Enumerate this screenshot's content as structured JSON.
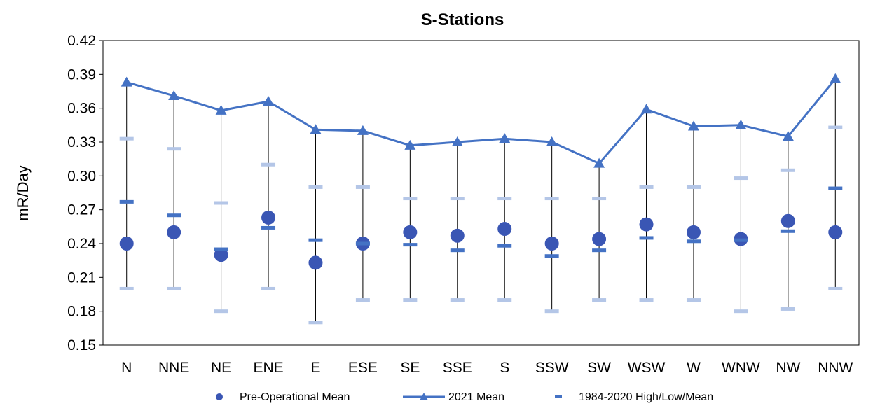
{
  "chart_data": {
    "type": "line",
    "title": "S-Stations",
    "xlabel": "",
    "ylabel": "mR/Day",
    "ylim": [
      0.15,
      0.42
    ],
    "yticks": [
      "0.15",
      "0.18",
      "0.21",
      "0.24",
      "0.27",
      "0.30",
      "0.33",
      "0.36",
      "0.39",
      "0.42"
    ],
    "grid": false,
    "legend_position": "bottom",
    "categories": [
      "N",
      "NNE",
      "NE",
      "ENE",
      "E",
      "ESE",
      "SE",
      "SSE",
      "S",
      "SSW",
      "SW",
      "WSW",
      "W",
      "WNW",
      "NW",
      "NNW"
    ],
    "series": [
      {
        "name": "Pre-Operational Mean",
        "marker": "circle",
        "color": "#3a56b4",
        "values": [
          0.24,
          0.25,
          0.23,
          0.263,
          0.223,
          0.24,
          0.25,
          0.247,
          0.253,
          0.24,
          0.244,
          0.257,
          0.25,
          0.244,
          0.26,
          0.25
        ]
      },
      {
        "name": "2021 Mean",
        "marker": "triangle",
        "color": "#4472c4",
        "values": [
          0.383,
          0.371,
          0.358,
          0.366,
          0.341,
          0.34,
          0.327,
          0.33,
          0.333,
          0.33,
          0.311,
          0.359,
          0.344,
          0.345,
          0.335,
          0.386
        ]
      },
      {
        "name": "1984-2020 High/Low/Mean",
        "marker": "dash",
        "mean_color": "#4472c4",
        "range_color": "#b4c6e7",
        "high": [
          0.333,
          0.324,
          0.276,
          0.31,
          0.29,
          0.29,
          0.28,
          0.28,
          0.28,
          0.28,
          0.28,
          0.29,
          0.29,
          0.298,
          0.305,
          0.343
        ],
        "low": [
          0.2,
          0.2,
          0.18,
          0.2,
          0.17,
          0.19,
          0.19,
          0.19,
          0.19,
          0.18,
          0.19,
          0.19,
          0.19,
          0.18,
          0.182,
          0.2
        ],
        "mean": [
          0.277,
          0.265,
          0.235,
          0.254,
          0.243,
          0.24,
          0.239,
          0.234,
          0.238,
          0.229,
          0.234,
          0.245,
          0.242,
          0.243,
          0.251,
          0.289
        ]
      }
    ]
  }
}
